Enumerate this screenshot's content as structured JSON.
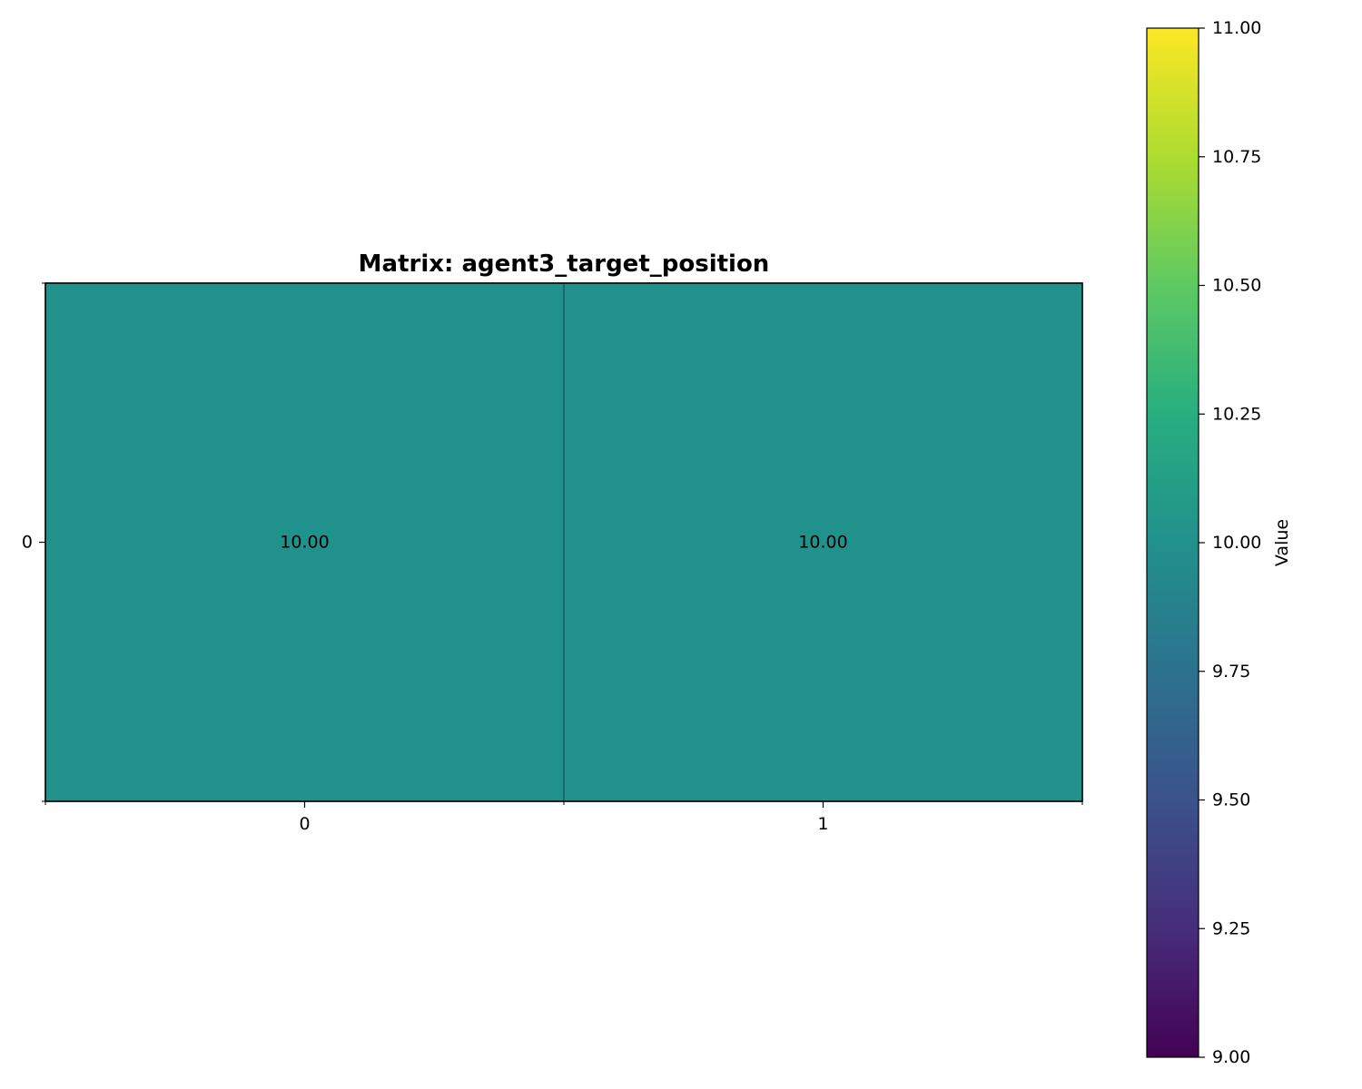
{
  "chart_data": {
    "type": "heatmap",
    "title": "Matrix: agent3_target_position",
    "x_categories": [
      "0",
      "1"
    ],
    "y_categories": [
      "0"
    ],
    "values": [
      [
        10.0,
        10.0
      ]
    ],
    "cell_labels": [
      [
        "10.00",
        "10.00"
      ]
    ],
    "colorbar": {
      "label": "Value",
      "colormap": "viridis",
      "range": [
        9.0,
        11.0
      ],
      "ticks": [
        9.0,
        9.25,
        9.5,
        9.75,
        10.0,
        10.25,
        10.5,
        10.75,
        11.0
      ],
      "tick_labels": [
        "9.00",
        "9.25",
        "9.50",
        "9.75",
        "10.00",
        "10.25",
        "10.50",
        "10.75",
        "11.00"
      ]
    }
  }
}
